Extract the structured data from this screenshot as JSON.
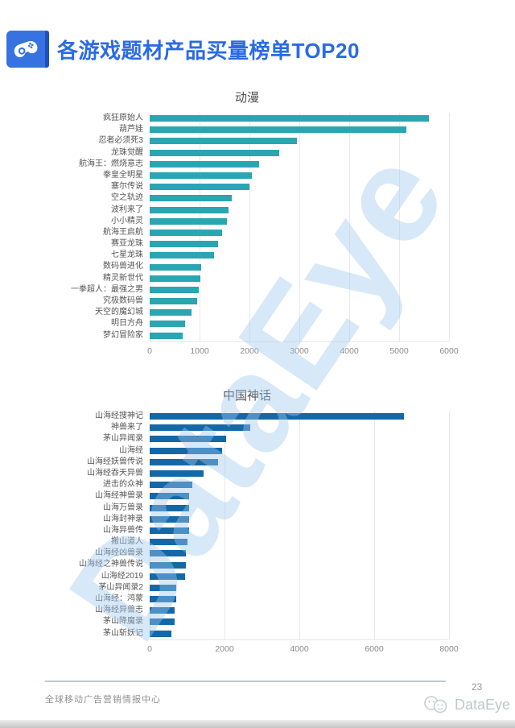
{
  "header": {
    "title": "各游戏题材产品买量榜单TOP20",
    "icon": "gamepad-icon",
    "accent_color": "#2B6BE2",
    "icon_bg_color": "#3673E0"
  },
  "watermark": {
    "text": "DataEye",
    "color": "#A0C8EE"
  },
  "chart_data": [
    {
      "type": "bar",
      "orientation": "horizontal",
      "title": "动漫",
      "color": "#2AA5B2",
      "xlim": [
        0,
        6000
      ],
      "xticks": [
        0,
        1000,
        2000,
        3000,
        4000,
        5000,
        6000
      ],
      "grid": true,
      "categories": [
        "疯狂原始人",
        "葫芦娃",
        "忍者必须死3",
        "龙珠觉醒",
        "航海王：燃烧意志",
        "拳皇全明星",
        "塞尔传说",
        "空之轨迹",
        "波利来了",
        "小小精灵",
        "航海王启航",
        "赛亚龙珠",
        "七星龙珠",
        "数码兽进化",
        "精灵新世代",
        "一拳超人：最强之男",
        "究极数码兽",
        "天空的魔幻城",
        "明日方舟",
        "梦幻冒险家"
      ],
      "values": [
        5600,
        5150,
        2950,
        2600,
        2200,
        2050,
        2000,
        1650,
        1580,
        1550,
        1450,
        1370,
        1290,
        1030,
        1020,
        990,
        950,
        845,
        710,
        655
      ]
    },
    {
      "type": "bar",
      "orientation": "horizontal",
      "title": "中国神话",
      "color": "#1368A8",
      "xlim": [
        0,
        8000
      ],
      "xticks": [
        0,
        2000,
        4000,
        6000,
        8000
      ],
      "grid": true,
      "categories": [
        "山海经搜神记",
        "神兽来了",
        "茅山异闻录",
        "山海经",
        "山海经妖兽传说",
        "山海经吞天异兽",
        "进击的众神",
        "山海经神兽录",
        "山海万兽录",
        "山海封神录",
        "山海异兽传",
        "搬山道人",
        "山海经凶兽录",
        "山海经之神兽传说",
        "山海经2019",
        "茅山异闻录2",
        "山海经：鸿蒙",
        "山海经异兽志",
        "茅山降魔录",
        "茅山斩妖记"
      ],
      "values": [
        6800,
        2690,
        2040,
        1930,
        1820,
        1440,
        1150,
        1060,
        1055,
        1050,
        1045,
        1015,
        965,
        960,
        945,
        705,
        700,
        675,
        660,
        590
      ]
    }
  ],
  "footer": {
    "left_text": "全球移动广告营销情报中心",
    "page_number": "23",
    "brand": "DataEye"
  }
}
